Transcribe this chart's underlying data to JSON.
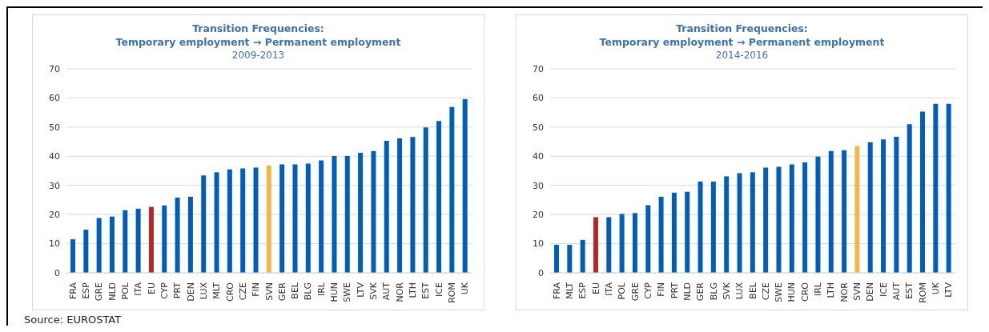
{
  "chart_data": [
    {
      "type": "bar",
      "title": "Transition Frequencies:\nTemporary employment → Permanent employment",
      "subtitle": "2009-2013",
      "categories": [
        "FRA",
        "ESP",
        "GRE",
        "NLD",
        "POL",
        "ITA",
        "EU",
        "CYP",
        "PRT",
        "DEN",
        "LUX",
        "MLT",
        "CRO",
        "CZE",
        "FIN",
        "SVN",
        "GER",
        "BEL",
        "BLG",
        "IRL",
        "HUN",
        "SWE",
        "LTV",
        "SVK",
        "AUT",
        "NOR",
        "LTH",
        "EST",
        "ICE",
        "ROM",
        "UK"
      ],
      "values": [
        11.5,
        14.8,
        18.8,
        19.3,
        21.5,
        22,
        22.6,
        23.1,
        25.8,
        26.1,
        33.4,
        34.5,
        35.5,
        35.8,
        36.1,
        36.8,
        37.2,
        37.2,
        37.5,
        38.6,
        40.1,
        40.1,
        41.2,
        41.8,
        45.3,
        46.1,
        46.6,
        49.9,
        52.1,
        56.9,
        59.6
      ],
      "colors": [
        "#005eb8",
        "#005eb8",
        "#005eb8",
        "#005eb8",
        "#005eb8",
        "#005eb8",
        "#b0272d",
        "#005eb8",
        "#005eb8",
        "#005eb8",
        "#005eb8",
        "#005eb8",
        "#005eb8",
        "#005eb8",
        "#005eb8",
        "#f0b849",
        "#005eb8",
        "#005eb8",
        "#005eb8",
        "#005eb8",
        "#005eb8",
        "#005eb8",
        "#005eb8",
        "#005eb8",
        "#005eb8",
        "#005eb8",
        "#005eb8",
        "#005eb8",
        "#005eb8",
        "#005eb8",
        "#005eb8"
      ],
      "ylim": [
        0,
        70
      ],
      "yticks": [
        0,
        10,
        20,
        30,
        40,
        50,
        60,
        70
      ],
      "grid": "y",
      "legend": false,
      "annotations": [
        "Source: EUROSTAT"
      ]
    },
    {
      "type": "bar",
      "title": "Transition Frequencies:\nTemporary employment → Permanent employment",
      "subtitle": "2014-2016",
      "categories": [
        "FRA",
        "MLT",
        "ESP",
        "EU",
        "ITA",
        "POL",
        "GRE",
        "CYP",
        "FIN",
        "PRT",
        "NLD",
        "GER",
        "BLG",
        "SVK",
        "LUX",
        "BEL",
        "CZE",
        "SWE",
        "HUN",
        "CRO",
        "IRL",
        "LTH",
        "NOR",
        "SVN",
        "DEN",
        "ICE",
        "AUT",
        "EST",
        "ROM",
        "UK",
        "LTV"
      ],
      "values": [
        9.6,
        9.6,
        11.3,
        19.1,
        19.1,
        20.2,
        20.5,
        23.2,
        26.1,
        27.5,
        27.8,
        31.3,
        31.3,
        33.1,
        34.2,
        34.5,
        36.1,
        36.4,
        37.2,
        37.9,
        39.9,
        41.8,
        42.1,
        43.5,
        44.8,
        45.8,
        46.7,
        51.0,
        55.3,
        58.0,
        58.0
      ],
      "colors": [
        "#005eb8",
        "#005eb8",
        "#005eb8",
        "#b0272d",
        "#005eb8",
        "#005eb8",
        "#005eb8",
        "#005eb8",
        "#005eb8",
        "#005eb8",
        "#005eb8",
        "#005eb8",
        "#005eb8",
        "#005eb8",
        "#005eb8",
        "#005eb8",
        "#005eb8",
        "#005eb8",
        "#005eb8",
        "#005eb8",
        "#005eb8",
        "#005eb8",
        "#005eb8",
        "#f0b849",
        "#005eb8",
        "#005eb8",
        "#005eb8",
        "#005eb8",
        "#005eb8",
        "#005eb8",
        "#005eb8"
      ],
      "ylim": [
        0,
        70
      ],
      "yticks": [
        0,
        10,
        20,
        30,
        40,
        50,
        60,
        70
      ],
      "grid": "y",
      "legend": false
    }
  ]
}
